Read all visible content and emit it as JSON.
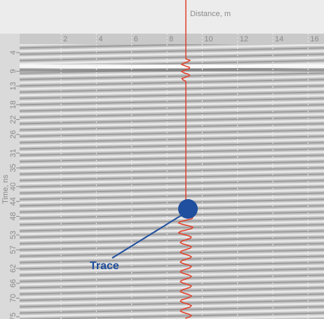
{
  "chart_data": {
    "type": "radargram",
    "xlabel": "Distance, m",
    "ylabel": "Time, ns",
    "xlim": [
      -0.35,
      16.9
    ],
    "xticks": [
      2,
      4,
      6,
      8,
      10,
      12,
      14,
      16
    ],
    "ylim": [
      -1.1,
      75.6
    ],
    "yticks": [
      4,
      9,
      13,
      18,
      22,
      26,
      31,
      35,
      40,
      44,
      48,
      53,
      57,
      62,
      66,
      70,
      75
    ],
    "grid": true,
    "annotation": "Trace",
    "trace_color": "#e0402a",
    "annotation_color": "#1f4f9e"
  }
}
